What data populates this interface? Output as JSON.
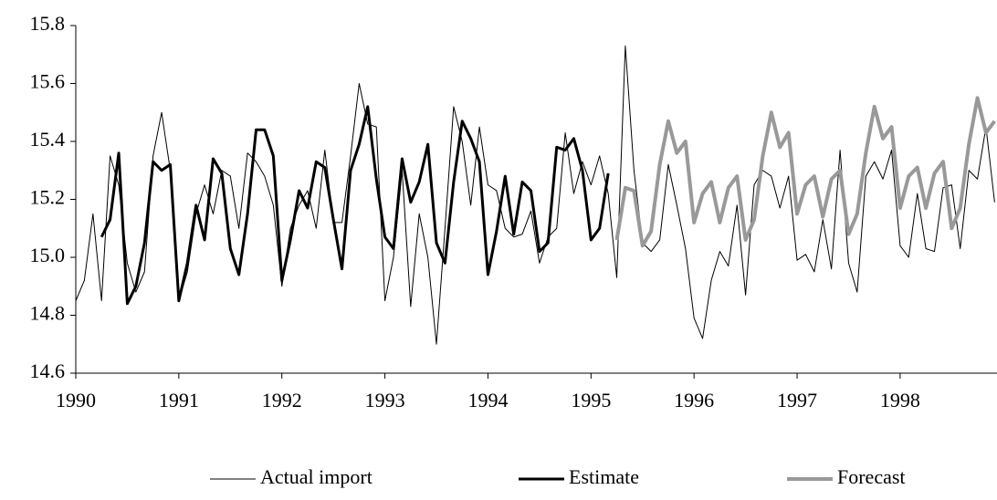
{
  "chart_data": {
    "type": "line",
    "x": [
      1990,
      1990.083,
      1990.167,
      1990.25,
      1990.333,
      1990.417,
      1990.5,
      1990.583,
      1990.667,
      1990.75,
      1990.833,
      1990.917,
      1991,
      1991.083,
      1991.167,
      1991.25,
      1991.333,
      1991.417,
      1991.5,
      1991.583,
      1991.667,
      1991.75,
      1991.833,
      1991.917,
      1992,
      1992.083,
      1992.167,
      1992.25,
      1992.333,
      1992.417,
      1992.5,
      1992.583,
      1992.667,
      1992.75,
      1992.833,
      1992.917,
      1993,
      1993.083,
      1993.167,
      1993.25,
      1993.333,
      1993.417,
      1993.5,
      1993.583,
      1993.667,
      1993.75,
      1993.833,
      1993.917,
      1994,
      1994.083,
      1994.167,
      1994.25,
      1994.333,
      1994.417,
      1994.5,
      1994.583,
      1994.667,
      1994.75,
      1994.833,
      1994.917,
      1995,
      1995.083,
      1995.167,
      1995.25,
      1995.333,
      1995.417,
      1995.5,
      1995.583,
      1995.667,
      1995.75,
      1995.833,
      1995.917,
      1996,
      1996.083,
      1996.167,
      1996.25,
      1996.333,
      1996.417,
      1996.5,
      1996.583,
      1996.667,
      1996.75,
      1996.833,
      1996.917,
      1997,
      1997.083,
      1997.167,
      1997.25,
      1997.333,
      1997.417,
      1997.5,
      1997.583,
      1997.667,
      1997.75,
      1997.833,
      1997.917,
      1998,
      1998.083,
      1998.167,
      1998.25,
      1998.333,
      1998.417,
      1998.5,
      1998.583,
      1998.667,
      1998.75,
      1998.833,
      1998.917
    ],
    "series": [
      {
        "name": "Actual import",
        "color": "#000000",
        "width": 1,
        "values": [
          14.85,
          14.92,
          15.15,
          14.85,
          15.35,
          15.25,
          14.98,
          14.88,
          14.95,
          15.35,
          15.5,
          15.3,
          14.85,
          14.95,
          15.15,
          15.25,
          15.15,
          15.3,
          15.28,
          15.1,
          15.36,
          15.33,
          15.28,
          15.18,
          14.9,
          15.1,
          15.18,
          15.23,
          15.1,
          15.37,
          15.12,
          15.12,
          15.35,
          15.6,
          15.46,
          15.45,
          14.85,
          15.0,
          15.3,
          14.83,
          15.15,
          15.0,
          14.7,
          15.1,
          15.52,
          15.4,
          15.18,
          15.45,
          15.25,
          15.23,
          15.1,
          15.07,
          15.08,
          15.16,
          14.98,
          15.07,
          15.1,
          15.43,
          15.22,
          15.33,
          15.25,
          15.35,
          15.22,
          14.93,
          15.73,
          15.3,
          15.05,
          15.02,
          15.06,
          15.32,
          15.18,
          15.03,
          14.79,
          14.72,
          14.92,
          15.02,
          14.97,
          15.18,
          14.87,
          15.25,
          15.3,
          15.28,
          15.17,
          15.28,
          14.99,
          15.01,
          14.95,
          15.13,
          14.96,
          15.37,
          14.98,
          14.88,
          15.28,
          15.33,
          15.27,
          15.37,
          15.04,
          15.0,
          15.22,
          15.03,
          15.02,
          15.24,
          15.25,
          15.03,
          15.3,
          15.27,
          15.45,
          15.19
        ]
      },
      {
        "name": "Estimate",
        "color": "#000000",
        "width": 3,
        "values": [
          null,
          null,
          null,
          15.07,
          15.13,
          15.36,
          14.84,
          14.9,
          15.05,
          15.33,
          15.3,
          15.32,
          14.85,
          14.98,
          15.18,
          15.06,
          15.34,
          15.29,
          15.03,
          14.94,
          15.15,
          15.44,
          15.44,
          15.35,
          14.92,
          15.06,
          15.23,
          15.17,
          15.33,
          15.31,
          15.13,
          14.96,
          15.3,
          15.39,
          15.52,
          15.27,
          15.07,
          15.03,
          15.34,
          15.19,
          15.26,
          15.39,
          15.05,
          14.98,
          15.26,
          15.47,
          15.41,
          15.33,
          14.94,
          15.09,
          15.28,
          15.08,
          15.26,
          15.23,
          15.02,
          15.05,
          15.38,
          15.37,
          15.41,
          15.3,
          15.06,
          15.1,
          15.29,
          null,
          null,
          null,
          null,
          null,
          null,
          null,
          null,
          null,
          null,
          null,
          null,
          null,
          null,
          null,
          null,
          null,
          null,
          null,
          null,
          null,
          null,
          null,
          null,
          null,
          null,
          null,
          null,
          null,
          null,
          null,
          null,
          null,
          null,
          null,
          null,
          null,
          null,
          null,
          null,
          null,
          null,
          null,
          null,
          null
        ]
      },
      {
        "name": "Forecast",
        "color": "#999999",
        "width": 4,
        "values": [
          null,
          null,
          null,
          null,
          null,
          null,
          null,
          null,
          null,
          null,
          null,
          null,
          null,
          null,
          null,
          null,
          null,
          null,
          null,
          null,
          null,
          null,
          null,
          null,
          null,
          null,
          null,
          null,
          null,
          null,
          null,
          null,
          null,
          null,
          null,
          null,
          null,
          null,
          null,
          null,
          null,
          null,
          null,
          null,
          null,
          null,
          null,
          null,
          null,
          null,
          null,
          null,
          null,
          null,
          null,
          null,
          null,
          null,
          null,
          null,
          null,
          null,
          null,
          15.06,
          15.24,
          15.23,
          15.04,
          15.09,
          15.32,
          15.47,
          15.36,
          15.4,
          15.12,
          15.22,
          15.26,
          15.12,
          15.24,
          15.28,
          15.06,
          15.13,
          15.35,
          15.5,
          15.38,
          15.43,
          15.15,
          15.25,
          15.28,
          15.14,
          15.27,
          15.3,
          15.08,
          15.15,
          15.36,
          15.52,
          15.41,
          15.45,
          15.17,
          15.28,
          15.31,
          15.17,
          15.29,
          15.33,
          15.1,
          15.17,
          15.39,
          15.55,
          15.43,
          15.47
        ]
      }
    ],
    "xlim": [
      1990,
      1998.94
    ],
    "xticks": [
      1990,
      1991,
      1992,
      1993,
      1994,
      1995,
      1996,
      1997,
      1998
    ],
    "ylim": [
      14.6,
      15.8
    ],
    "yticks": [
      14.6,
      14.8,
      {
        "value": 15,
        "label": "15.0"
      },
      15.2,
      15.4,
      15.6,
      15.8
    ],
    "grid": false,
    "legend": "bottom"
  }
}
